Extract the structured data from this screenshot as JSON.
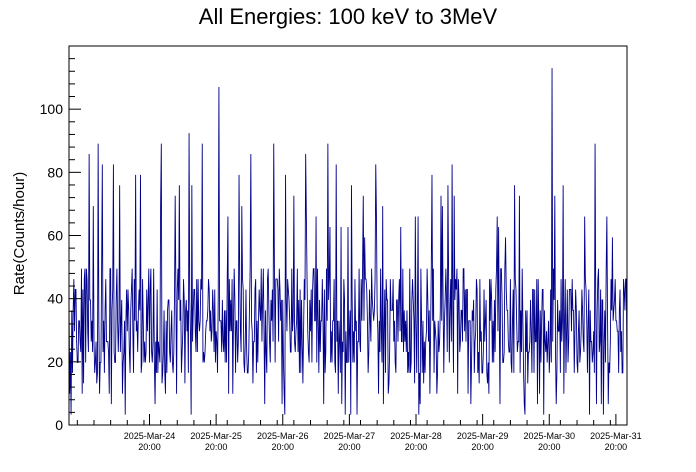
{
  "title": "All Energies:  100 keV to 3MeV",
  "chart_data": {
    "type": "line",
    "title": "All Energies:  100 keV to 3MeV",
    "ylabel": "Rate(Counts/hour)",
    "xlabel": "",
    "ylim": [
      0,
      120
    ],
    "y_ticks": [
      0,
      20,
      40,
      60,
      80,
      100
    ],
    "x_range": [
      "2025-Mar-23 15:00",
      "2025-Apr-01 00:00"
    ],
    "x_tick_labels": [
      {
        "date": "2025-Mar-24",
        "time": "20:00"
      },
      {
        "date": "2025-Mar-25",
        "time": "20:00"
      },
      {
        "date": "2025-Mar-26",
        "time": "20:00"
      },
      {
        "date": "2025-Mar-27",
        "time": "20:00"
      },
      {
        "date": "2025-Mar-28",
        "time": "20:00"
      },
      {
        "date": "2025-Mar-29",
        "time": "20:00"
      },
      {
        "date": "2025-Mar-30",
        "time": "20:00"
      },
      {
        "date": "2025-Mar-31",
        "time": "20:00"
      }
    ],
    "series_color": "#00008b",
    "typical_range": [
      15,
      50
    ],
    "peaks": [
      {
        "x": "2025-Mar-25 21:00",
        "y": 107
      },
      {
        "x": "2025-Mar-30 21:00",
        "y": 113
      }
    ],
    "grid": false,
    "legend": "none"
  }
}
